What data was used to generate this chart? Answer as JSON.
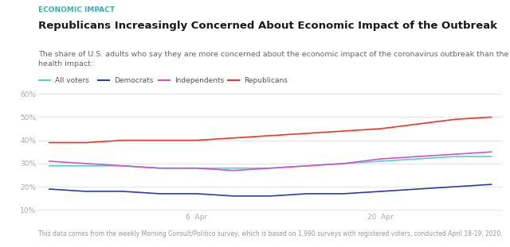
{
  "title_tag": "ECONOMIC IMPACT",
  "title": "Republicans Increasingly Concerned About Economic Impact of the Outbreak",
  "subtitle": "The share of U.S. adults who say they are more concerned about the economic impact of the coronavirus outbreak than the public\nhealth impact:",
  "footer": "This data comes from the weekly Morning Consult/Politico survey, which is based on 1,990 surveys with registered voters, conducted April 18-19, 2020.",
  "legend_labels": [
    "All voters",
    "Democrats",
    "Independents",
    "Republicans"
  ],
  "line_colors": [
    "#4DD9C0",
    "#2E3DA6",
    "#CC55CC",
    "#E8382A"
  ],
  "x_values": [
    0,
    1,
    2,
    3,
    4,
    5,
    6,
    7,
    8,
    9,
    10,
    11,
    12
  ],
  "series": {
    "All voters": [
      29,
      29,
      29,
      28,
      28,
      28,
      28,
      29,
      30,
      31,
      32,
      33,
      33
    ],
    "Democrats": [
      19,
      18,
      18,
      17,
      17,
      16,
      16,
      17,
      17,
      18,
      19,
      20,
      21
    ],
    "Independents": [
      31,
      30,
      29,
      28,
      28,
      27,
      28,
      29,
      30,
      32,
      33,
      34,
      35
    ],
    "Republicans": [
      39,
      39,
      40,
      40,
      40,
      41,
      42,
      43,
      44,
      45,
      47,
      49,
      50
    ]
  },
  "xtick_positions": [
    4,
    9
  ],
  "xtick_labels": [
    "6  Apr",
    "20  Apr"
  ],
  "ylim": [
    10,
    60
  ],
  "ytick_values": [
    10,
    20,
    30,
    40,
    50,
    60
  ],
  "background_color": "#FFFFFF",
  "grid_color": "#E0E0E0",
  "title_tag_color": "#3AAFAA",
  "title_color": "#1A1A1A",
  "subtitle_color": "#666666",
  "footer_color": "#999999",
  "tag_fontsize": 6.5,
  "title_fontsize": 9.5,
  "subtitle_fontsize": 6.8,
  "footer_fontsize": 5.5,
  "legend_fontsize": 6.5,
  "tick_fontsize": 6.5
}
